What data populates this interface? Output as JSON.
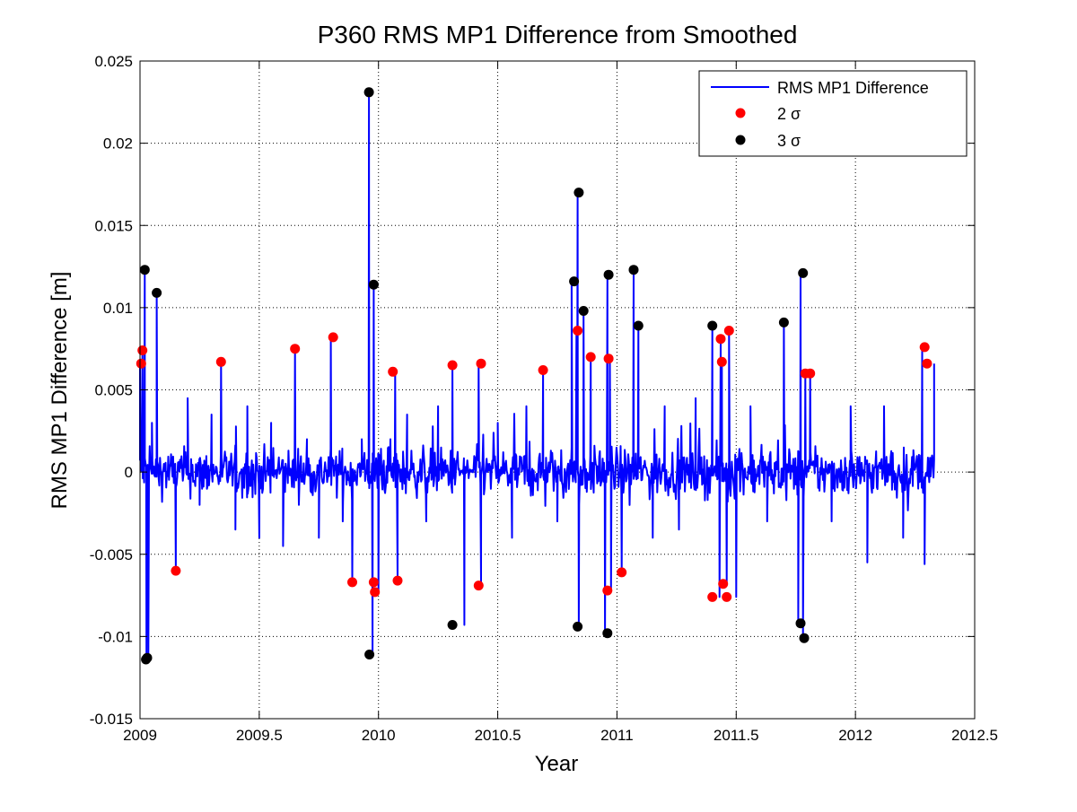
{
  "chart_data": {
    "type": "line",
    "title": "P360 RMS MP1 Difference from Smoothed",
    "xlabel": "Year",
    "ylabel": "RMS MP1 Difference [m]",
    "xlim": [
      2009,
      2012.5
    ],
    "ylim": [
      -0.015,
      0.025
    ],
    "xticks": [
      "2009",
      "2009.5",
      "2010",
      "2010.5",
      "2011",
      "2011.5",
      "2012",
      "2012.5"
    ],
    "yticks": [
      "-0.015",
      "-0.01",
      "-0.005",
      "0",
      "0.005",
      "0.01",
      "0.015",
      "0.02",
      "0.025"
    ],
    "grid": true,
    "legend": {
      "position": "top-right",
      "entries": [
        {
          "label": "RMS MP1 Difference",
          "marker": "line",
          "color": "#0000ff"
        },
        {
          "label": "2 σ",
          "marker": "dot",
          "color": "#ff0000"
        },
        {
          "label": "3 σ",
          "marker": "dot",
          "color": "#000000"
        }
      ]
    },
    "series": [
      {
        "name": "RMS MP1 Difference",
        "color": "#0000ff",
        "x_range": [
          2009.0,
          2012.33
        ],
        "noise_amplitude": 0.0025,
        "x": [
          2009.0,
          2009.01,
          2009.02,
          2009.027,
          2009.035,
          2009.05,
          2009.07,
          2009.1,
          2009.15,
          2009.2,
          2009.25,
          2009.3,
          2009.34,
          2009.4,
          2009.45,
          2009.5,
          2009.55,
          2009.6,
          2009.65,
          2009.7,
          2009.75,
          2009.8,
          2009.85,
          2009.89,
          2009.93,
          2009.96,
          2009.975,
          2009.98,
          2010.0,
          2010.05,
          2010.07,
          2010.08,
          2010.12,
          2010.2,
          2010.25,
          2010.31,
          2010.36,
          2010.42,
          2010.43,
          2010.5,
          2010.56,
          2010.62,
          2010.69,
          2010.75,
          2010.81,
          2010.83,
          2010.835,
          2010.84,
          2010.86,
          2010.89,
          2010.95,
          2010.96,
          2010.97,
          2010.975,
          2011.02,
          2011.07,
          2011.09,
          2011.15,
          2011.2,
          2011.26,
          2011.33,
          2011.4,
          2011.43,
          2011.435,
          2011.44,
          2011.46,
          2011.47,
          2011.5,
          2011.56,
          2011.63,
          2011.7,
          2011.76,
          2011.77,
          2011.78,
          2011.79,
          2011.81,
          2011.9,
          2011.98,
          2012.05,
          2012.12,
          2012.2,
          2012.28,
          2012.29,
          2012.33
        ],
        "values": [
          0.0066,
          0.0074,
          0.0123,
          -0.0114,
          -0.0113,
          0.003,
          0.0109,
          0.0005,
          -0.006,
          0.0045,
          -0.002,
          0.0035,
          0.0067,
          -0.0035,
          0.004,
          -0.004,
          0.003,
          -0.0045,
          0.0075,
          0.002,
          -0.004,
          0.0082,
          -0.003,
          -0.0067,
          0.002,
          0.0231,
          -0.0111,
          0.0114,
          -0.0072,
          0.002,
          0.0061,
          -0.0066,
          0.0035,
          -0.003,
          0.004,
          0.0065,
          -0.0093,
          0.0066,
          -0.0069,
          0.003,
          -0.004,
          0.004,
          0.0062,
          -0.003,
          0.0116,
          0.0086,
          0.017,
          -0.0094,
          0.0098,
          0.007,
          -0.0098,
          0.012,
          0.0069,
          -0.0072,
          -0.0061,
          0.0123,
          0.0089,
          -0.004,
          0.004,
          -0.0035,
          0.0045,
          0.0089,
          -0.0076,
          0.0081,
          0.0067,
          -0.0068,
          0.0086,
          -0.0076,
          0.004,
          -0.003,
          0.0091,
          -0.0092,
          0.0121,
          -0.0101,
          0.006,
          0.006,
          -0.003,
          0.004,
          -0.0055,
          0.004,
          -0.004,
          0.0076,
          -0.0056,
          0.0066
        ]
      },
      {
        "name": "2 σ",
        "color": "#ff0000",
        "x": [
          2009.005,
          2009.01,
          2009.15,
          2009.34,
          2009.65,
          2009.81,
          2009.89,
          2009.98,
          2009.985,
          2010.06,
          2010.08,
          2010.31,
          2010.42,
          2010.43,
          2010.69,
          2010.835,
          2010.89,
          2010.96,
          2010.965,
          2011.02,
          2011.4,
          2011.435,
          2011.44,
          2011.445,
          2011.46,
          2011.47,
          2011.79,
          2011.81,
          2012.29,
          2012.3
        ],
        "values": [
          0.0066,
          0.0074,
          -0.006,
          0.0067,
          0.0075,
          0.0082,
          -0.0067,
          -0.0067,
          -0.0073,
          0.0061,
          -0.0066,
          0.0065,
          -0.0069,
          0.0066,
          0.0062,
          0.0086,
          0.007,
          -0.0072,
          0.0069,
          -0.0061,
          -0.0076,
          0.0081,
          0.0067,
          -0.0068,
          -0.0076,
          0.0086,
          0.006,
          0.006,
          0.0076,
          0.0066
        ]
      },
      {
        "name": "3 σ",
        "color": "#000000",
        "x": [
          2009.02,
          2009.025,
          2009.03,
          2009.07,
          2009.96,
          2009.962,
          2009.98,
          2010.31,
          2010.82,
          2010.835,
          2010.84,
          2010.86,
          2010.96,
          2010.965,
          2011.07,
          2011.09,
          2011.4,
          2011.7,
          2011.77,
          2011.78,
          2011.785
        ],
        "values": [
          0.0123,
          -0.0114,
          -0.0113,
          0.0109,
          0.0231,
          -0.0111,
          0.0114,
          -0.0093,
          0.0116,
          -0.0094,
          0.017,
          0.0098,
          -0.0098,
          0.012,
          0.0123,
          0.0089,
          0.0089,
          0.0091,
          -0.0092,
          0.0121,
          -0.0101
        ]
      }
    ]
  }
}
